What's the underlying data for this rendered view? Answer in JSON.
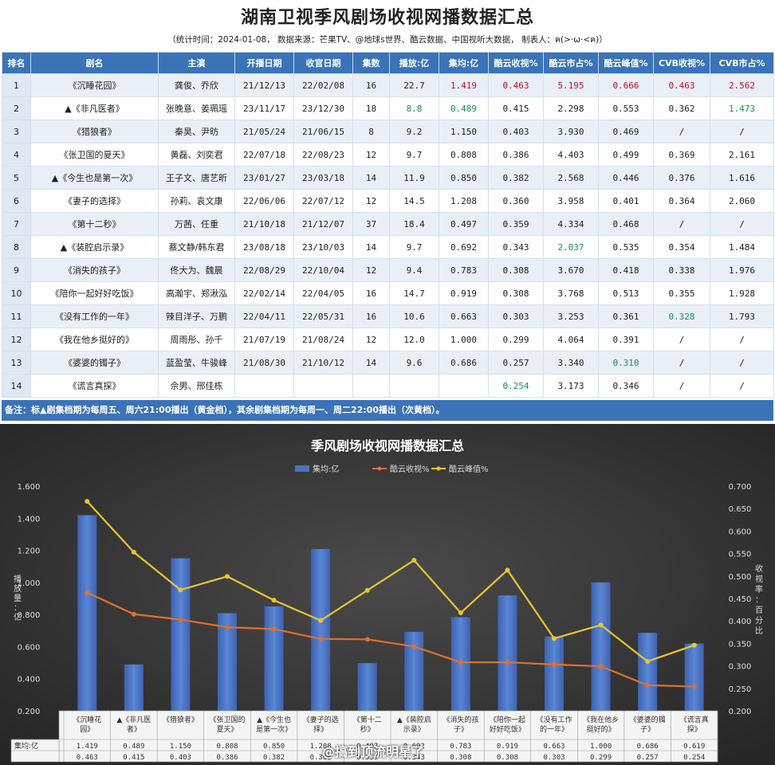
{
  "header": {
    "title": "湖南卫视季风剧场收视网播数据汇总",
    "subtitle": "（统计时间：2024-01-08， 数据来源：芒果TV、@地球s世界、酷云数据、中国视听大数据， 制表人：ฅ(>·ω·<ฅ)）"
  },
  "table": {
    "columns": [
      "排名",
      "剧名",
      "主演",
      "开播日期",
      "收官日期",
      "集数",
      "播放:亿",
      "集均:亿",
      "酷云收视%",
      "酷云市占%",
      "酷云峰值%",
      "CVB收视%",
      "CVB市占%"
    ],
    "rows": [
      {
        "rank": "1",
        "title": "《沉睡花园》",
        "cast": "龚俊、乔欣",
        "start": "21/12/13",
        "end": "22/02/08",
        "eps": "16",
        "views": "22.7",
        "avg": "1.419",
        "ky_rating": "0.463",
        "ky_share": "5.195",
        "ky_peak": "0.666",
        "cvb_rating": "0.463",
        "cvb_share": "2.562"
      },
      {
        "rank": "2",
        "title": "▲《非凡医者》",
        "cast": "张晚意、姜珮瑶",
        "start": "23/11/17",
        "end": "23/12/30",
        "eps": "18",
        "views": "8.8",
        "avg": "0.489",
        "ky_rating": "0.415",
        "ky_share": "2.298",
        "ky_peak": "0.553",
        "cvb_rating": "0.362",
        "cvb_share": "1.473"
      },
      {
        "rank": "3",
        "title": "《猎狼者》",
        "cast": "秦昊、尹昉",
        "start": "21/05/24",
        "end": "21/06/15",
        "eps": "8",
        "views": "9.2",
        "avg": "1.150",
        "ky_rating": "0.403",
        "ky_share": "3.930",
        "ky_peak": "0.469",
        "cvb_rating": "/",
        "cvb_share": "/"
      },
      {
        "rank": "4",
        "title": "《张卫国的夏天》",
        "cast": "黄磊、刘奕君",
        "start": "22/07/18",
        "end": "22/08/23",
        "eps": "12",
        "views": "9.7",
        "avg": "0.808",
        "ky_rating": "0.386",
        "ky_share": "4.403",
        "ky_peak": "0.499",
        "cvb_rating": "0.369",
        "cvb_share": "2.161"
      },
      {
        "rank": "5",
        "title": "▲《今生也是第一次》",
        "cast": "王子文、唐艺昕",
        "start": "23/01/27",
        "end": "23/03/18",
        "eps": "14",
        "views": "11.9",
        "avg": "0.850",
        "ky_rating": "0.382",
        "ky_share": "2.568",
        "ky_peak": "0.446",
        "cvb_rating": "0.376",
        "cvb_share": "1.616"
      },
      {
        "rank": "6",
        "title": "《妻子的选择》",
        "cast": "孙莉、袁文康",
        "start": "22/06/06",
        "end": "22/07/12",
        "eps": "12",
        "views": "14.5",
        "avg": "1.208",
        "ky_rating": "0.360",
        "ky_share": "3.958",
        "ky_peak": "0.401",
        "cvb_rating": "0.364",
        "cvb_share": "2.060"
      },
      {
        "rank": "7",
        "title": "《第十二秒》",
        "cast": "万茜、任重",
        "start": "21/10/18",
        "end": "21/12/07",
        "eps": "37",
        "views": "18.4",
        "avg": "0.497",
        "ky_rating": "0.359",
        "ky_share": "4.334",
        "ky_peak": "0.468",
        "cvb_rating": "/",
        "cvb_share": "/"
      },
      {
        "rank": "8",
        "title": "▲《装腔启示录》",
        "cast": "蔡文静/韩东君",
        "start": "23/08/18",
        "end": "23/10/03",
        "eps": "14",
        "views": "9.7",
        "avg": "0.692",
        "ky_rating": "0.343",
        "ky_share": "2.037",
        "ky_peak": "0.535",
        "cvb_rating": "0.354",
        "cvb_share": "1.484"
      },
      {
        "rank": "9",
        "title": "《消失的孩子》",
        "cast": "佟大为、魏晨",
        "start": "22/08/29",
        "end": "22/10/04",
        "eps": "12",
        "views": "9.4",
        "avg": "0.783",
        "ky_rating": "0.308",
        "ky_share": "3.670",
        "ky_peak": "0.418",
        "cvb_rating": "0.338",
        "cvb_share": "1.976"
      },
      {
        "rank": "10",
        "title": "《陪你一起好好吃饭》",
        "cast": "高瀚宇、郑湫泓",
        "start": "22/02/14",
        "end": "22/04/05",
        "eps": "16",
        "views": "14.7",
        "avg": "0.919",
        "ky_rating": "0.308",
        "ky_share": "3.768",
        "ky_peak": "0.513",
        "cvb_rating": "0.355",
        "cvb_share": "1.928"
      },
      {
        "rank": "11",
        "title": "《没有工作的一年》",
        "cast": "辣目洋子、万鹏",
        "start": "22/04/11",
        "end": "22/05/31",
        "eps": "16",
        "views": "10.6",
        "avg": "0.663",
        "ky_rating": "0.303",
        "ky_share": "3.253",
        "ky_peak": "0.361",
        "cvb_rating": "0.328",
        "cvb_share": "1.793"
      },
      {
        "rank": "12",
        "title": "《我在他乡挺好的》",
        "cast": "周雨彤、孙千",
        "start": "21/07/19",
        "end": "21/08/24",
        "eps": "12",
        "views": "12.0",
        "avg": "1.000",
        "ky_rating": "0.299",
        "ky_share": "4.064",
        "ky_peak": "0.391",
        "cvb_rating": "/",
        "cvb_share": "/"
      },
      {
        "rank": "13",
        "title": "《婆婆的镯子》",
        "cast": "蓝盈莹、牛骏峰",
        "start": "21/08/30",
        "end": "21/10/12",
        "eps": "14",
        "views": "9.6",
        "avg": "0.686",
        "ky_rating": "0.257",
        "ky_share": "3.340",
        "ky_peak": "0.310",
        "cvb_rating": "/",
        "cvb_share": "/"
      },
      {
        "rank": "14",
        "title": "《谎言真探》",
        "cast": "佘男、邢佳栋",
        "start": "",
        "end": "",
        "eps": "",
        "views": "",
        "avg": "",
        "ky_rating": "0.254",
        "ky_share": "3.173",
        "ky_peak": "0.346",
        "cvb_rating": "/",
        "cvb_share": "/"
      }
    ],
    "highlights": {
      "red": [
        [
          0,
          "avg"
        ],
        [
          0,
          "ky_rating"
        ],
        [
          0,
          "ky_share"
        ],
        [
          0,
          "ky_peak"
        ],
        [
          0,
          "cvb_rating"
        ],
        [
          0,
          "cvb_share"
        ]
      ],
      "green": [
        [
          1,
          "views"
        ],
        [
          1,
          "avg"
        ],
        [
          1,
          "cvb_share"
        ],
        [
          7,
          "ky_share"
        ],
        [
          10,
          "cvb_rating"
        ],
        [
          12,
          "ky_peak"
        ],
        [
          13,
          "ky_rating"
        ]
      ]
    },
    "colors": {
      "header": "#3a73b8",
      "red": "#c0102a",
      "green": "#12905a"
    }
  },
  "note": "备注：标▲剧集档期为每周五、周六21:00播出（黄金档），其余剧集档期为每周一、周二22:00播出（次黄档）。",
  "chart_data": {
    "type": "bar",
    "title": "季风剧场收视网播数据汇总",
    "categories": [
      "《沉睡花园》",
      "▲《非凡医者》",
      "《猎狼者》",
      "《张卫国的夏天》",
      "▲《今生也是第一次》",
      "《妻子的选择》",
      "《第十二秒》",
      "▲《装腔启示录》",
      "《消失的孩子》",
      "《陪你一起好好吃饭》",
      "《没有工作的一年》",
      "《我在他乡挺好的》",
      "《婆婆的镯子》",
      "《谎言真探》"
    ],
    "category_labels": [
      [
        "《沉睡花",
        "园》"
      ],
      [
        "▲《非凡医",
        "者》"
      ],
      [
        "《猎狼者》"
      ],
      [
        "《张卫国的",
        "夏天》"
      ],
      [
        "▲《今生也",
        "是第一次》"
      ],
      [
        "《妻子的选",
        "择》"
      ],
      [
        "《第十二",
        "秒》"
      ],
      [
        "▲《装腔启",
        "示录》"
      ],
      [
        "《消失的孩",
        "子》"
      ],
      [
        "《陪你一起",
        "好好吃饭》"
      ],
      [
        "《没有工作",
        "的一年》"
      ],
      [
        "《我在他乡",
        "挺好的》"
      ],
      [
        "《婆婆的镯",
        "子》"
      ],
      [
        "《谎言真",
        "探》"
      ]
    ],
    "series": [
      {
        "name": "集均:亿",
        "kind": "bar",
        "axis": "left",
        "color": "#4a72c4",
        "values": [
          1.419,
          0.489,
          1.15,
          0.808,
          0.85,
          1.208,
          0.497,
          0.692,
          0.783,
          0.919,
          0.663,
          1.0,
          0.686,
          0.619
        ]
      },
      {
        "name": "酷云收视%",
        "kind": "line",
        "axis": "right",
        "color": "#e0702a",
        "values": [
          0.463,
          0.415,
          0.403,
          0.386,
          0.382,
          0.36,
          0.359,
          0.343,
          0.308,
          0.308,
          0.303,
          0.299,
          0.257,
          0.254
        ]
      },
      {
        "name": "酷云峰值%",
        "kind": "line",
        "axis": "right",
        "color": "#e8c533",
        "values": [
          0.666,
          0.553,
          0.469,
          0.499,
          0.446,
          0.401,
          0.468,
          0.535,
          0.418,
          0.513,
          0.361,
          0.391,
          0.31,
          0.346
        ]
      }
    ],
    "y_left": {
      "label": "播放量：亿",
      "range": [
        0.2,
        1.6
      ],
      "ticks": [
        "0.200",
        "0.400",
        "0.600",
        "0.800",
        "1.000",
        "1.200",
        "1.400",
        "1.600"
      ]
    },
    "y_right": {
      "label": "收视率：百分比",
      "range": [
        0.2,
        0.7
      ],
      "ticks": [
        "0.200",
        "0.250",
        "0.300",
        "0.350",
        "0.400",
        "0.450",
        "0.500",
        "0.550",
        "0.600",
        "0.650",
        "0.700"
      ]
    },
    "legend": "top-center",
    "grid": false,
    "data_table_rows": [
      {
        "label": "集均:亿",
        "values": [
          "1.419",
          "0.489",
          "1.150",
          "0.808",
          "0.850",
          "1.208",
          "0.497",
          "0.692",
          "0.783",
          "0.919",
          "0.663",
          "1.000",
          "0.686",
          "0.619"
        ]
      },
      {
        "label": "",
        "values": [
          "0.463",
          "0.415",
          "0.403",
          "0.386",
          "0.382",
          "0.360",
          "0.359",
          "0.343",
          "0.308",
          "0.308",
          "0.303",
          "0.299",
          "0.257",
          "0.254"
        ]
      }
    ]
  },
  "watermark": "@搞到顶流明星了"
}
